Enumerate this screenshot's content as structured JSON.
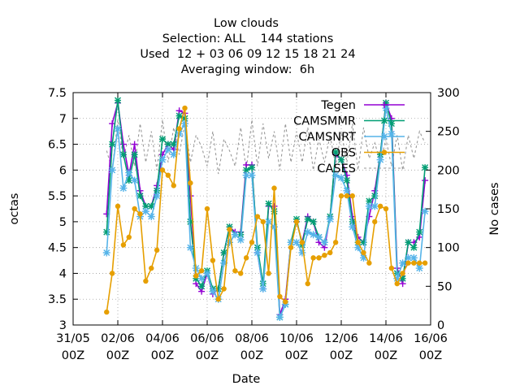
{
  "chart_data": {
    "type": "line",
    "title_lines": [
      "Low clouds",
      "Selection: ALL    144 stations",
      "Used  12 + 03 06 09 12 15 18 21 24",
      "Averaging window:  6h"
    ],
    "xlabel": "Date",
    "ylabel": "octas",
    "y2label": "No cases",
    "ylim": [
      3,
      7.5
    ],
    "y2lim": [
      0,
      300
    ],
    "yticks": [
      3,
      3.5,
      4,
      4.5,
      5,
      5.5,
      6,
      6.5,
      7,
      7.5
    ],
    "ytick_labels": [
      "3",
      "3.5",
      "4",
      "4.5",
      "5",
      "5.5",
      "6",
      "6.5",
      "7",
      "7.5"
    ],
    "y2ticks": [
      0,
      50,
      100,
      150,
      200,
      250,
      300
    ],
    "xlim": [
      0,
      16
    ],
    "xticks": [
      0,
      2,
      4,
      6,
      8,
      10,
      12,
      14,
      16
    ],
    "xtick_labels": [
      [
        "31/05",
        "00Z"
      ],
      [
        "02/06",
        "00Z"
      ],
      [
        "04/06",
        "00Z"
      ],
      [
        "06/06",
        "00Z"
      ],
      [
        "08/06",
        "00Z"
      ],
      [
        "10/06",
        "00Z"
      ],
      [
        "12/06",
        "00Z"
      ],
      [
        "14/06",
        "00Z"
      ],
      [
        "16/06",
        "00Z"
      ]
    ],
    "grid": true,
    "legend_position": "top-right",
    "series": [
      {
        "name": "Tegen",
        "color": "#9400d3",
        "marker": "plus",
        "axis": "y1",
        "x": [
          1.5,
          1.75,
          2,
          2.25,
          2.5,
          2.75,
          3,
          3.25,
          3.5,
          3.75,
          4,
          4.25,
          4.5,
          4.75,
          5,
          5.25,
          5.5,
          5.75,
          6,
          6.25,
          6.5,
          6.75,
          7,
          7.25,
          7.5,
          7.75,
          8,
          8.25,
          8.5,
          8.75,
          9,
          9.25,
          9.5,
          9.75,
          10,
          10.25,
          10.5,
          10.75,
          11,
          11.25,
          11.5,
          11.75,
          12,
          12.25,
          12.5,
          12.75,
          13,
          13.25,
          13.5,
          13.75,
          14,
          14.25,
          14.5,
          14.75,
          15,
          15.25,
          15.5,
          15.75
        ],
        "values": [
          5.15,
          6.9,
          7.3,
          6.5,
          5.9,
          6.5,
          5.6,
          5.3,
          5.3,
          5.7,
          6.3,
          6.5,
          6.4,
          7.15,
          7.1,
          5.5,
          3.8,
          3.65,
          4.0,
          3.6,
          3.7,
          4.4,
          4.9,
          4.8,
          4.8,
          6.1,
          6.1,
          4.4,
          3.7,
          5.3,
          5.3,
          3.2,
          3.5,
          4.6,
          5.0,
          4.6,
          5.1,
          5.0,
          4.6,
          4.5,
          5.1,
          6.3,
          6.2,
          5.9,
          5.1,
          4.7,
          4.6,
          5.1,
          5.6,
          6.3,
          7.3,
          7.0,
          4.1,
          3.8,
          4.6,
          4.6,
          4.7,
          5.8
        ]
      },
      {
        "name": "CAMSMMR",
        "color": "#009e73",
        "marker": "x",
        "axis": "y1",
        "x": [
          1.5,
          1.75,
          2,
          2.25,
          2.5,
          2.75,
          3,
          3.25,
          3.5,
          3.75,
          4,
          4.25,
          4.5,
          4.75,
          5,
          5.25,
          5.5,
          5.75,
          6,
          6.25,
          6.5,
          6.75,
          7,
          7.25,
          7.5,
          7.75,
          8,
          8.25,
          8.5,
          8.75,
          9,
          9.25,
          9.5,
          9.75,
          10,
          10.25,
          10.5,
          10.75,
          11,
          11.25,
          11.5,
          11.75,
          12,
          12.25,
          12.5,
          12.75,
          13,
          13.25,
          13.5,
          13.75,
          14,
          14.25,
          14.5,
          14.75,
          15,
          15.25,
          15.5,
          15.75
        ],
        "values": [
          4.8,
          6.5,
          7.35,
          6.3,
          5.8,
          6.3,
          5.5,
          5.3,
          5.3,
          5.6,
          6.6,
          6.5,
          6.5,
          7.05,
          7.0,
          5.0,
          3.9,
          3.75,
          4.05,
          3.7,
          3.7,
          4.4,
          4.9,
          4.75,
          4.75,
          6.0,
          6.05,
          4.5,
          3.8,
          5.35,
          5.2,
          3.15,
          3.4,
          4.6,
          5.05,
          4.55,
          5.05,
          5.0,
          4.7,
          4.6,
          5.1,
          6.35,
          6.2,
          5.8,
          5.0,
          4.6,
          4.6,
          5.4,
          5.5,
          6.3,
          7.3,
          6.9,
          4.0,
          3.9,
          4.6,
          4.5,
          4.8,
          6.05
        ]
      },
      {
        "name": "CAMSNRT",
        "color": "#56b4e9",
        "marker": "star",
        "axis": "y1",
        "x": [
          1.5,
          1.75,
          2,
          2.25,
          2.5,
          2.75,
          3,
          3.25,
          3.5,
          3.75,
          4,
          4.25,
          4.5,
          4.75,
          5,
          5.25,
          5.5,
          5.75,
          6,
          6.25,
          6.5,
          6.75,
          7,
          7.25,
          7.5,
          7.75,
          8,
          8.25,
          8.5,
          8.75,
          9,
          9.25,
          9.5,
          9.75,
          10,
          10.25,
          10.5,
          10.75,
          11,
          11.25,
          11.5,
          11.75,
          12,
          12.25,
          12.5,
          12.75,
          13,
          13.25,
          13.5,
          13.75,
          14,
          14.25,
          14.5,
          14.75,
          15,
          15.25,
          15.5,
          15.75
        ],
        "values": [
          4.4,
          6.0,
          6.8,
          5.65,
          5.95,
          5.8,
          5.1,
          5.2,
          5.1,
          5.5,
          6.2,
          6.4,
          6.3,
          6.7,
          6.9,
          4.5,
          4.1,
          3.9,
          4.0,
          3.65,
          3.5,
          4.2,
          4.6,
          4.75,
          4.65,
          5.9,
          5.9,
          4.4,
          3.7,
          5.0,
          4.9,
          3.15,
          3.4,
          4.6,
          4.6,
          4.4,
          4.8,
          4.75,
          4.7,
          4.6,
          5.05,
          5.9,
          5.85,
          5.6,
          4.9,
          4.5,
          4.3,
          5.3,
          5.3,
          6.2,
          7.2,
          6.7,
          3.9,
          4.2,
          4.3,
          4.3,
          4.1,
          5.2
        ]
      },
      {
        "name": "OBS",
        "color": "#e69f00",
        "marker": "circle",
        "axis": "y1",
        "x": [
          1.5,
          1.75,
          2,
          2.25,
          2.5,
          2.75,
          3,
          3.25,
          3.5,
          3.75,
          4,
          4.25,
          4.5,
          4.75,
          5,
          5.25,
          5.5,
          5.75,
          6,
          6.25,
          6.5,
          6.75,
          7,
          7.25,
          7.5,
          7.75,
          8,
          8.25,
          8.5,
          8.75,
          9,
          9.25,
          9.5,
          9.75,
          10,
          10.25,
          10.5,
          10.75,
          11,
          11.25,
          11.5,
          11.75,
          12,
          12.25,
          12.5,
          12.75,
          13,
          13.25,
          13.5,
          13.75,
          14,
          14.25,
          14.5,
          14.75,
          15,
          15.25,
          15.5,
          15.75
        ],
        "values": [
          3.25,
          4.0,
          5.3,
          4.55,
          4.7,
          5.25,
          5.15,
          3.85,
          4.1,
          4.45,
          6.0,
          5.9,
          5.7,
          6.8,
          7.2,
          5.75,
          3.95,
          4.05,
          5.25,
          4.25,
          3.5,
          3.7,
          4.85,
          4.05,
          4.0,
          4.3,
          4.6,
          5.1,
          5.0,
          4.0,
          5.65,
          3.55,
          3.45,
          4.5,
          5.0,
          4.6,
          3.8,
          4.3,
          4.3,
          4.35,
          4.4,
          4.6,
          5.5,
          5.5,
          5.5,
          4.6,
          4.4,
          4.2,
          5.0,
          5.3,
          5.25,
          4.1,
          3.8,
          4.0,
          4.2,
          4.2,
          4.2,
          4.2
        ]
      },
      {
        "name": "CASES",
        "color": "#999999",
        "marker": "none",
        "dashed": true,
        "axis": "y2",
        "x": [
          1.5,
          1.75,
          2,
          2.25,
          2.5,
          2.75,
          3,
          3.25,
          3.5,
          3.75,
          4,
          4.25,
          4.5,
          4.75,
          5,
          5.25,
          5.5,
          5.75,
          6,
          6.25,
          6.5,
          6.75,
          7,
          7.25,
          7.5,
          7.75,
          8,
          8.25,
          8.5,
          8.75,
          9,
          9.25,
          9.5,
          9.75,
          10,
          10.25,
          10.5,
          10.75,
          11,
          11.25,
          11.5,
          11.75,
          12,
          12.25,
          12.5,
          12.75,
          13,
          13.25,
          13.5,
          13.75,
          14,
          14.25,
          14.5,
          14.75,
          15,
          15.25,
          15.5,
          15.75
        ],
        "values": [
          225,
          200,
          265,
          215,
          245,
          205,
          260,
          210,
          250,
          200,
          265,
          210,
          255,
          220,
          260,
          210,
          245,
          230,
          205,
          250,
          195,
          240,
          225,
          205,
          255,
          200,
          265,
          205,
          260,
          215,
          250,
          200,
          260,
          210,
          250,
          210,
          255,
          200,
          240,
          210,
          245,
          205,
          250,
          210,
          260,
          200,
          255,
          215,
          235,
          210,
          240,
          205,
          245,
          200,
          245,
          215,
          250,
          235
        ]
      }
    ]
  }
}
